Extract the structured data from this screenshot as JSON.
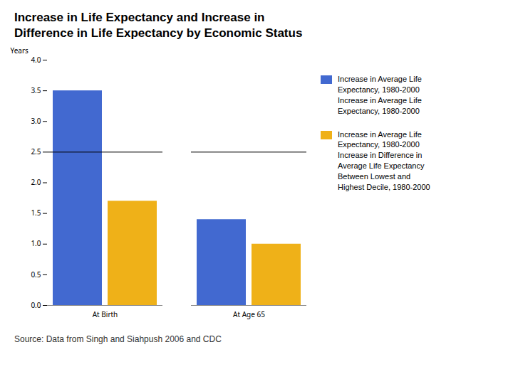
{
  "chart_data": {
    "type": "bar",
    "title": "Increase in Life Expectancy and Increase in\nDifference in Life Expectancy by Economic Status",
    "categories": [
      "At Birth",
      "At Age 65"
    ],
    "series": [
      {
        "name": "Increase in Average Life\nExpectancy, 1980-2000\nIncrease in Average Life\nExpectancy, 1980-2000",
        "values": [
          3.5,
          1.4
        ]
      },
      {
        "name": "Increase in Average Life\nExpectancy, 1980-2000\nIncrease in Difference in\nAverage Life Expectancy\nBetween Lowest and\nHighest Decile, 1980-2000",
        "values": [
          1.7,
          1.0
        ]
      }
    ],
    "ylabel": "Years",
    "ylim": [
      0,
      4
    ],
    "yticks": [
      0,
      0.5,
      1,
      1.5,
      2,
      2.5,
      3,
      3.5,
      4
    ],
    "hline": 2.5,
    "grid": false,
    "legend": "right",
    "caption": "Source: Data from Singh and Siahpush 2006 and CDC"
  }
}
